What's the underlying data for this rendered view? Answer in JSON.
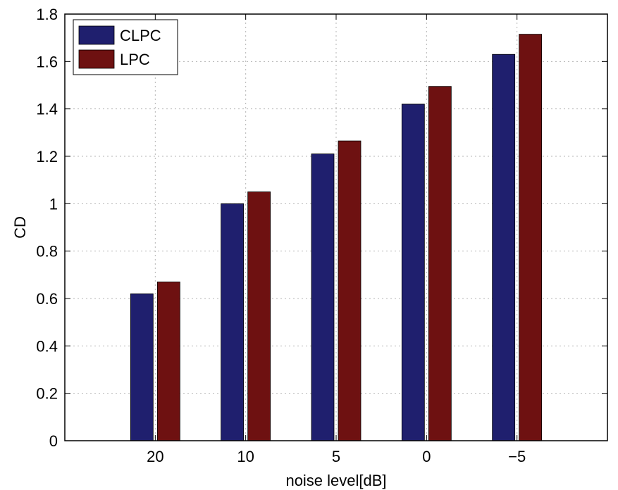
{
  "chart_data": {
    "type": "bar",
    "categories": [
      "20",
      "10",
      "5",
      "0",
      "−5"
    ],
    "series": [
      {
        "name": "CLPC",
        "color": "#1f1f6e",
        "values": [
          0.62,
          1.0,
          1.21,
          1.42,
          1.63
        ]
      },
      {
        "name": "LPC",
        "color": "#6e1111",
        "values": [
          0.67,
          1.05,
          1.265,
          1.495,
          1.715
        ]
      }
    ],
    "xlabel": "noise level[dB]",
    "ylabel": "CD",
    "ylim": [
      0,
      1.8
    ],
    "yticks": [
      "0",
      "0.2",
      "0.4",
      "0.6",
      "0.8",
      "1",
      "1.2",
      "1.4",
      "1.6",
      "1.8"
    ],
    "grid": true,
    "legend_position": "top-left"
  }
}
